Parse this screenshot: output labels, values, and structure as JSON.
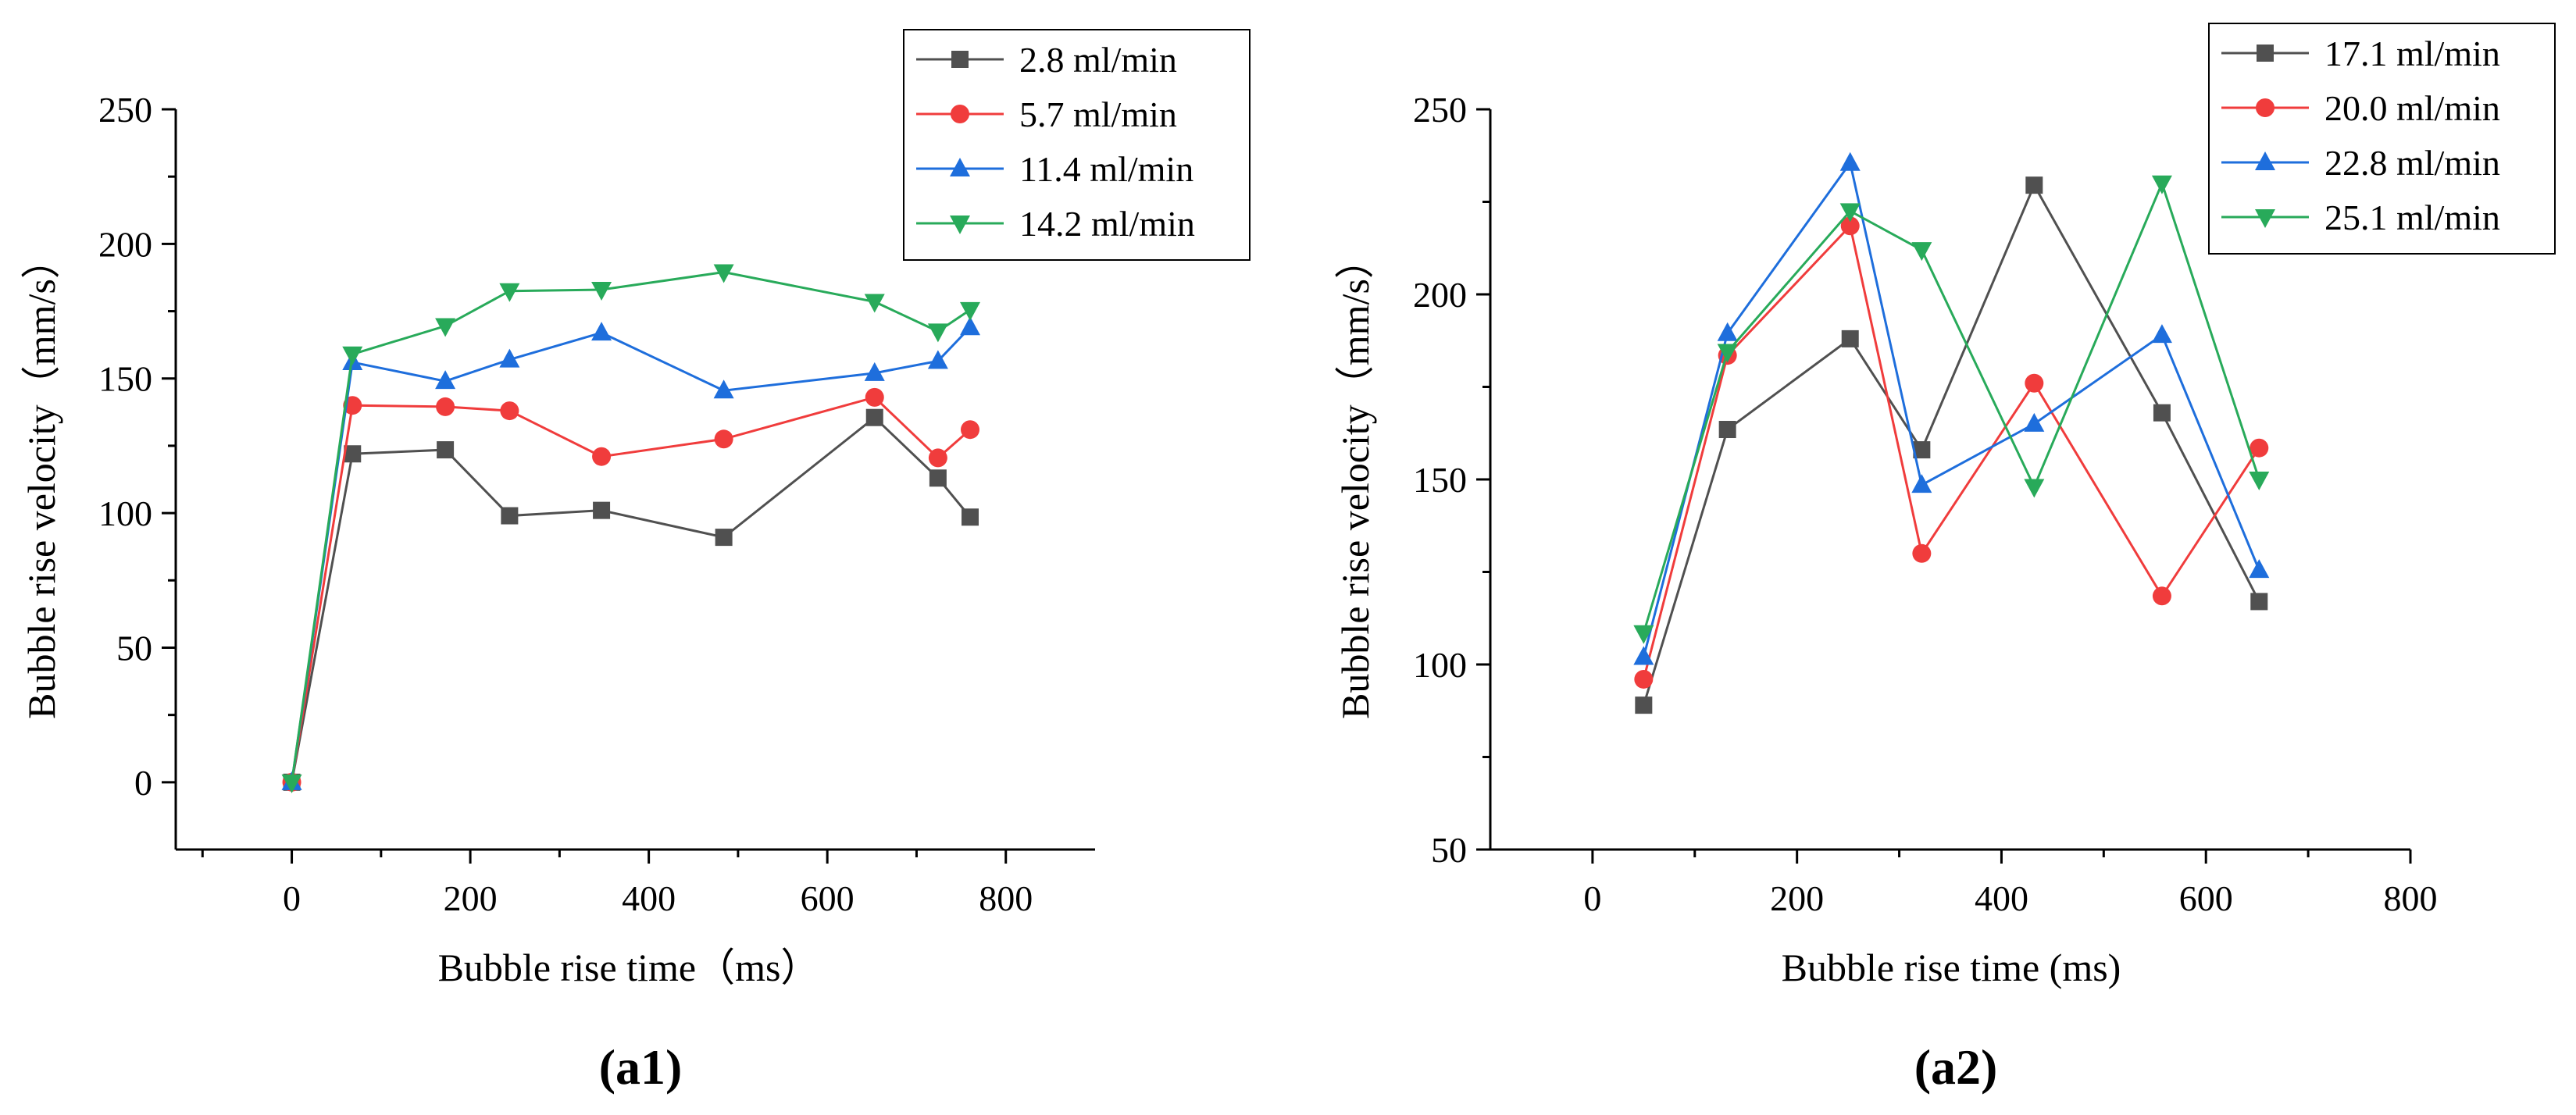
{
  "chart_data": [
    {
      "type": "line",
      "panel_label": "(a1)",
      "title": "",
      "xlabel": "Bubble rise time（ms）",
      "ylabel": "Bubble rise velocity（mm/s）",
      "xlim": [
        -130,
        900
      ],
      "ylim": [
        -25,
        250
      ],
      "xticks": [
        0,
        200,
        400,
        600,
        800
      ],
      "yticks": [
        0,
        50,
        100,
        150,
        200,
        250
      ],
      "grid": false,
      "legend_position": "top-right",
      "series": [
        {
          "name": "2.8  ml/min",
          "color": "#505050",
          "marker": "square",
          "x": [
            0,
            68,
            172,
            244,
            347,
            484,
            653,
            724,
            760
          ],
          "y": [
            0,
            122,
            123.5,
            99,
            101,
            91,
            135.5,
            113,
            98.5
          ]
        },
        {
          "name": "5.7  ml/min",
          "color": "#f03c3c",
          "marker": "circle",
          "x": [
            0,
            68,
            172,
            244,
            347,
            484,
            653,
            724,
            760
          ],
          "y": [
            0,
            140,
            139.5,
            138,
            121,
            127.5,
            143,
            120.5,
            131
          ]
        },
        {
          "name": "11.4 ml/min",
          "color": "#1e6edc",
          "marker": "triangle-up",
          "x": [
            0,
            68,
            172,
            244,
            347,
            484,
            653,
            724,
            760
          ],
          "y": [
            0,
            156,
            149,
            157,
            167,
            145.5,
            152,
            156.5,
            169
          ]
        },
        {
          "name": "14.2 ml/min",
          "color": "#28aa5a",
          "marker": "triangle-down",
          "x": [
            0,
            68,
            172,
            244,
            347,
            484,
            653,
            724,
            760
          ],
          "y": [
            0,
            159,
            169.5,
            182.5,
            183,
            189.5,
            178.5,
            167.5,
            175.5
          ]
        }
      ]
    },
    {
      "type": "line",
      "panel_label": "(a2)",
      "title": "",
      "xlabel": "Bubble rise time (ms)",
      "ylabel": "Bubble rise velocity（mm/s）",
      "xlim": [
        -100,
        800
      ],
      "ylim": [
        50,
        250
      ],
      "xticks": [
        0,
        200,
        400,
        600,
        800
      ],
      "yticks": [
        50,
        100,
        150,
        200,
        250
      ],
      "grid": false,
      "legend_position": "top-right",
      "series": [
        {
          "name": "17.1 ml/min",
          "color": "#505050",
          "marker": "square",
          "x": [
            50,
            132,
            252,
            322,
            432,
            557,
            652
          ],
          "y": [
            89,
            163.5,
            188,
            158,
            229.5,
            168,
            117
          ]
        },
        {
          "name": "20.0 ml/min",
          "color": "#f03c3c",
          "marker": "circle",
          "x": [
            50,
            132,
            252,
            322,
            432,
            557,
            652
          ],
          "y": [
            96,
            183.5,
            218.5,
            130,
            176,
            118.5,
            158.5
          ]
        },
        {
          "name": "22.8 ml/min",
          "color": "#1e6edc",
          "marker": "triangle-up",
          "x": [
            50,
            132,
            252,
            322,
            432,
            557,
            652
          ],
          "y": [
            102,
            189.5,
            235.5,
            148.5,
            165,
            189,
            125.5
          ]
        },
        {
          "name": "25.1 ml/min",
          "color": "#28aa5a",
          "marker": "triangle-down",
          "x": [
            50,
            132,
            252,
            322,
            432,
            557,
            652
          ],
          "y": [
            108.5,
            184.5,
            222.5,
            212,
            148,
            230,
            150
          ]
        }
      ]
    }
  ]
}
